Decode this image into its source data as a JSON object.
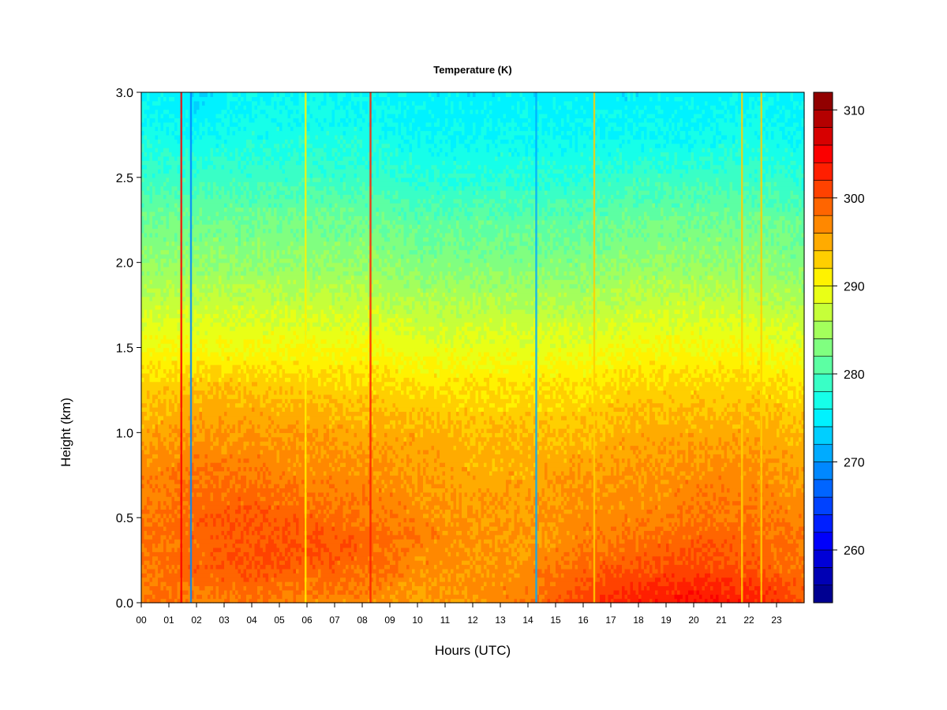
{
  "chart_data": {
    "type": "heatmap",
    "title": "Temperature (K)",
    "xlabel": "Hours (UTC)",
    "ylabel": "Height (km)",
    "x_tick_labels": [
      "00",
      "01",
      "02",
      "03",
      "04",
      "05",
      "06",
      "07",
      "08",
      "09",
      "10",
      "11",
      "12",
      "13",
      "14",
      "15",
      "16",
      "17",
      "18",
      "19",
      "20",
      "21",
      "22",
      "23"
    ],
    "xlim": [
      0,
      24
    ],
    "y_tick_labels": [
      "0.0",
      "0.5",
      "1.0",
      "1.5",
      "2.0",
      "2.5",
      "3.0"
    ],
    "ylim": [
      0,
      3
    ],
    "colorbar": {
      "tick_labels": [
        "260",
        "270",
        "280",
        "290",
        "300",
        "310"
      ],
      "range": [
        254,
        312
      ],
      "levels": 29,
      "colormap": "jet"
    },
    "heights_km": [
      0.0,
      0.1,
      0.2,
      0.3,
      0.4,
      0.5,
      0.75,
      1.0,
      1.25,
      1.5,
      1.75,
      2.0,
      2.25,
      2.5,
      2.75,
      3.0
    ],
    "hours_utc": [
      0,
      2,
      4,
      6,
      8,
      10,
      12,
      14,
      16,
      18,
      20,
      22,
      24
    ],
    "temperature_k": [
      [
        299,
        297,
        298,
        297,
        297,
        295,
        296,
        298,
        301,
        303,
        304,
        303,
        300
      ],
      [
        298,
        298,
        299,
        298,
        298,
        296,
        297,
        297,
        300,
        302,
        303,
        302,
        299
      ],
      [
        298,
        299,
        300,
        299,
        299,
        297,
        296,
        297,
        299,
        300,
        301,
        300,
        298
      ],
      [
        298,
        299,
        300,
        300,
        299,
        297,
        296,
        296,
        298,
        299,
        300,
        299,
        298
      ],
      [
        298,
        299,
        300,
        300,
        299,
        298,
        296,
        296,
        297,
        298,
        299,
        299,
        298
      ],
      [
        298,
        299,
        300,
        299,
        298,
        297,
        296,
        296,
        297,
        297,
        298,
        298,
        297
      ],
      [
        297,
        298,
        298,
        297,
        297,
        296,
        295,
        295,
        296,
        296,
        297,
        297,
        296
      ],
      [
        295,
        296,
        296,
        296,
        295,
        295,
        294,
        294,
        294,
        295,
        295,
        295,
        294
      ],
      [
        293,
        294,
        294,
        293,
        293,
        292,
        292,
        292,
        292,
        293,
        293,
        293,
        292
      ],
      [
        290,
        290,
        290,
        290,
        290,
        289,
        289,
        289,
        289,
        290,
        290,
        290,
        289
      ],
      [
        287,
        287,
        287,
        287,
        287,
        286,
        286,
        286,
        286,
        287,
        287,
        287,
        286
      ],
      [
        284,
        284,
        284,
        284,
        284,
        283,
        283,
        283,
        283,
        284,
        284,
        284,
        283
      ],
      [
        282,
        282,
        282,
        282,
        282,
        281,
        281,
        281,
        281,
        282,
        282,
        282,
        281
      ],
      [
        279,
        279,
        279,
        279,
        279,
        278,
        278,
        278,
        278,
        279,
        279,
        279,
        278
      ],
      [
        277,
        276,
        277,
        277,
        277,
        276,
        276,
        276,
        276,
        276,
        276,
        277,
        276
      ],
      [
        276,
        274,
        276,
        276,
        276,
        275,
        275,
        275,
        275,
        275,
        275,
        276,
        275
      ]
    ],
    "vertical_streaks": [
      {
        "hour": 1.45,
        "temperature_k": 304
      },
      {
        "hour": 1.8,
        "temperature_k": 268
      },
      {
        "hour": 5.95,
        "temperature_k": 290
      },
      {
        "hour": 8.3,
        "temperature_k": 302
      },
      {
        "hour": 14.3,
        "temperature_k": 270
      },
      {
        "hour": 16.4,
        "temperature_k": 292
      },
      {
        "hour": 21.75,
        "temperature_k": 292
      },
      {
        "hour": 22.45,
        "temperature_k": 292
      }
    ]
  }
}
